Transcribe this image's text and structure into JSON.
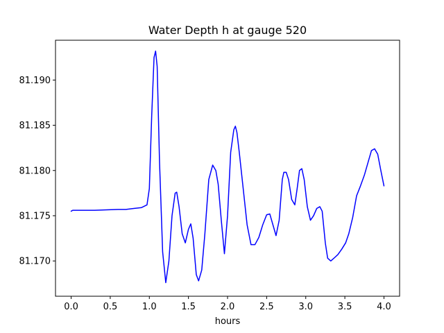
{
  "chart_data": {
    "type": "line",
    "title": "Water Depth h at gauge 520",
    "xlabel": "hours",
    "ylabel": "",
    "xlim": [
      -0.2,
      4.2
    ],
    "ylim": [
      81.1661,
      81.1944
    ],
    "xticks": [
      0.0,
      0.5,
      1.0,
      1.5,
      2.0,
      2.5,
      3.0,
      3.5,
      4.0
    ],
    "xtick_labels": [
      "0.0",
      "0.5",
      "1.0",
      "1.5",
      "2.0",
      "2.5",
      "3.0",
      "3.5",
      "4.0"
    ],
    "yticks": [
      81.17,
      81.175,
      81.18,
      81.185,
      81.19
    ],
    "ytick_labels": [
      "81.170",
      "81.175",
      "81.180",
      "81.185",
      "81.190"
    ],
    "grid": false,
    "legend": "none",
    "series": [
      {
        "color": "#0000ff",
        "x": [
          0.0,
          0.02,
          0.3,
          0.6,
          0.7,
          0.8,
          0.9,
          0.97,
          1.0,
          1.03,
          1.06,
          1.08,
          1.1,
          1.13,
          1.17,
          1.21,
          1.25,
          1.29,
          1.33,
          1.35,
          1.38,
          1.42,
          1.46,
          1.5,
          1.53,
          1.56,
          1.6,
          1.63,
          1.67,
          1.71,
          1.76,
          1.81,
          1.85,
          1.88,
          1.92,
          1.96,
          2.0,
          2.04,
          2.08,
          2.1,
          2.12,
          2.15,
          2.2,
          2.25,
          2.3,
          2.35,
          2.4,
          2.45,
          2.5,
          2.54,
          2.58,
          2.62,
          2.66,
          2.7,
          2.72,
          2.75,
          2.78,
          2.82,
          2.86,
          2.89,
          2.92,
          2.95,
          2.98,
          3.02,
          3.06,
          3.1,
          3.14,
          3.18,
          3.21,
          3.25,
          3.28,
          3.32,
          3.36,
          3.41,
          3.46,
          3.51,
          3.55,
          3.6,
          3.65,
          3.7,
          3.75,
          3.8,
          3.84,
          3.88,
          3.92,
          3.96,
          4.0
        ],
        "y": [
          81.1755,
          81.1756,
          81.1756,
          81.1757,
          81.1757,
          81.1758,
          81.1759,
          81.1762,
          81.178,
          81.186,
          81.1925,
          81.1932,
          81.1915,
          81.181,
          81.171,
          81.1676,
          81.17,
          81.175,
          81.1775,
          81.1776,
          81.176,
          81.173,
          81.172,
          81.1735,
          81.1741,
          81.1725,
          81.1685,
          81.1678,
          81.169,
          81.173,
          81.179,
          81.1806,
          81.18,
          81.1785,
          81.1745,
          81.1708,
          81.175,
          81.182,
          81.1845,
          81.1849,
          81.1842,
          81.182,
          81.178,
          81.174,
          81.1718,
          81.1718,
          81.1726,
          81.174,
          81.1751,
          81.1752,
          81.174,
          81.1728,
          81.1745,
          81.179,
          81.1798,
          81.1798,
          81.179,
          81.1768,
          81.1762,
          81.178,
          81.18,
          81.1802,
          81.179,
          81.176,
          81.1745,
          81.175,
          81.1758,
          81.176,
          81.1755,
          81.172,
          81.1703,
          81.17,
          81.1703,
          81.1707,
          81.1713,
          81.172,
          81.173,
          81.1748,
          81.1772,
          81.1783,
          81.1795,
          81.181,
          81.1822,
          81.1824,
          81.1818,
          81.18,
          81.1783
        ]
      }
    ]
  }
}
